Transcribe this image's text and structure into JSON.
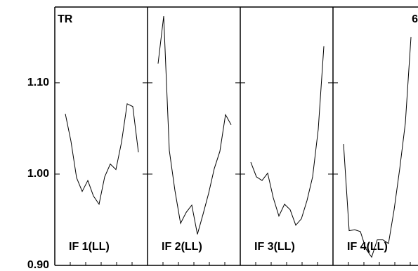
{
  "chart_data": {
    "type": "line",
    "title": "TR",
    "annotation": "6",
    "ylim": [
      0.9,
      1.183
    ],
    "yticks": [
      {
        "value": 0.9,
        "label": "0.90"
      },
      {
        "value": 1.0,
        "label": "1.00"
      },
      {
        "value": 1.1,
        "label": "1.10"
      }
    ],
    "color": "#000000",
    "panels": [
      {
        "label": "IF 1(LL)",
        "values": [
          1.066,
          1.036,
          0.996,
          0.981,
          0.993,
          0.976,
          0.967,
          0.997,
          1.011,
          1.005,
          1.035,
          1.077,
          1.074,
          1.024
        ]
      },
      {
        "label": "IF 2(LL)",
        "values": [
          1.121,
          1.173,
          1.026,
          0.982,
          0.946,
          0.958,
          0.966,
          0.934,
          0.956,
          0.979,
          1.006,
          1.025,
          1.065,
          1.054
        ]
      },
      {
        "label": "IF 3(LL)",
        "values": [
          1.013,
          0.997,
          0.993,
          1.001,
          0.974,
          0.954,
          0.967,
          0.961,
          0.944,
          0.951,
          0.971,
          0.997,
          1.049,
          1.14
        ]
      },
      {
        "label": "IF 4(LL)",
        "values": [
          1.033,
          0.938,
          0.939,
          0.937,
          0.918,
          0.909,
          0.928,
          0.928,
          0.924,
          0.961,
          1.006,
          1.056,
          1.15
        ]
      }
    ]
  }
}
